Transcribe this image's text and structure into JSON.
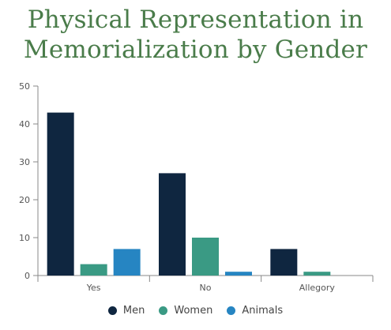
{
  "chart_data": {
    "type": "bar",
    "title_lines": [
      "Physical Representation in",
      "Memorialization by Gender"
    ],
    "categories": [
      "Yes",
      "No",
      "Allegory"
    ],
    "series": [
      {
        "name": "Men",
        "color": "#0f2640",
        "values": [
          43,
          27,
          7
        ]
      },
      {
        "name": "Women",
        "color": "#3a9a84",
        "values": [
          3,
          10,
          1
        ]
      },
      {
        "name": "Animals",
        "color": "#2685c2",
        "values": [
          7,
          1,
          0
        ]
      }
    ],
    "ylim": [
      0,
      50
    ],
    "yticks": [
      0,
      10,
      20,
      30,
      40,
      50
    ],
    "grid": false,
    "legend_position": "bottom-center",
    "xlabel": "",
    "ylabel": ""
  }
}
